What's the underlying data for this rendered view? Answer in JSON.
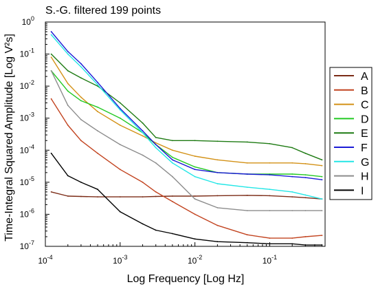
{
  "chart_data": {
    "type": "line",
    "title": "S.-G. filtered 199 points",
    "xlabel": "Log Frequency [Log Hz]",
    "ylabel": "Time-Integral Squared Amplitude [Log V²s]",
    "xscale": "log",
    "yscale": "log",
    "xlim": [
      0.0001,
      0.55
    ],
    "ylim": [
      1e-07,
      1
    ],
    "x_ticks": [
      {
        "value": 0.0001,
        "base": "10",
        "exp": "-4"
      },
      {
        "value": 0.001,
        "base": "10",
        "exp": "-3"
      },
      {
        "value": 0.01,
        "base": "10",
        "exp": "-2"
      },
      {
        "value": 0.1,
        "base": "10",
        "exp": "-1"
      }
    ],
    "y_ticks": [
      {
        "value": 1,
        "base": "10",
        "exp": "0"
      },
      {
        "value": 0.1,
        "base": "10",
        "exp": "-1"
      },
      {
        "value": 0.01,
        "base": "10",
        "exp": "-2"
      },
      {
        "value": 0.001,
        "base": "10",
        "exp": "-3"
      },
      {
        "value": 0.0001,
        "base": "10",
        "exp": "-4"
      },
      {
        "value": 1e-05,
        "base": "10",
        "exp": "-5"
      },
      {
        "value": 1e-06,
        "base": "10",
        "exp": "-6"
      },
      {
        "value": 1e-07,
        "base": "10",
        "exp": "-7"
      }
    ],
    "grid": false,
    "legend_position": "right",
    "x": [
      0.00012,
      0.0002,
      0.0003,
      0.0005,
      0.001,
      0.002,
      0.003,
      0.005,
      0.01,
      0.02,
      0.05,
      0.1,
      0.2,
      0.3,
      0.5
    ],
    "series": [
      {
        "name": "A",
        "color": "#7b2b16",
        "values": [
          5e-06,
          3.7e-06,
          3.6e-06,
          3.5e-06,
          3.5e-06,
          3.5e-06,
          3.6e-06,
          3.7e-06,
          3.7e-06,
          3.8e-06,
          3.9e-06,
          3.8e-06,
          3.5e-06,
          3.3e-06,
          3e-06
        ]
      },
      {
        "name": "B",
        "color": "#c2431f",
        "values": [
          0.004,
          0.0006,
          0.0002,
          8e-05,
          2.5e-05,
          1e-05,
          5e-06,
          2.5e-06,
          1e-06,
          4.5e-07,
          2.3e-07,
          1.8e-07,
          1.8e-07,
          2e-07,
          2.2e-07
        ]
      },
      {
        "name": "C",
        "color": "#d39116",
        "values": [
          0.08,
          0.012,
          0.0045,
          0.0016,
          0.0006,
          0.00028,
          0.00017,
          0.0001,
          6.5e-05,
          5e-05,
          4e-05,
          4e-05,
          4e-05,
          3.8e-05,
          3.3e-05
        ]
      },
      {
        "name": "D",
        "color": "#22c922",
        "values": [
          0.03,
          0.007,
          0.0035,
          0.0022,
          0.001,
          0.00035,
          0.00015,
          6e-05,
          3e-05,
          2e-05,
          1.8e-05,
          1.8e-05,
          1.8e-05,
          1.7e-05,
          1.5e-05
        ]
      },
      {
        "name": "E",
        "color": "#1d7a12",
        "values": [
          0.1,
          0.03,
          0.018,
          0.01,
          0.003,
          0.0007,
          0.00025,
          0.0002,
          0.0002,
          0.00019,
          0.00018,
          0.00016,
          0.00012,
          8e-05,
          5e-05
        ]
      },
      {
        "name": "F",
        "color": "#1a1ad6",
        "values": [
          0.5,
          0.12,
          0.05,
          0.013,
          0.002,
          0.0004,
          0.00015,
          5e-05,
          2.5e-05,
          2e-05,
          1.8e-05,
          1.7e-05,
          1.5e-05,
          1.4e-05,
          1.2e-05
        ]
      },
      {
        "name": "G",
        "color": "#22e6e6",
        "values": [
          0.4,
          0.1,
          0.04,
          0.011,
          0.0018,
          0.00035,
          0.00012,
          4e-05,
          1.5e-05,
          9e-06,
          7e-06,
          6e-06,
          5e-06,
          4e-06,
          3e-06
        ]
      },
      {
        "name": "H",
        "color": "#8c8c8c",
        "values": [
          0.03,
          0.0025,
          0.0009,
          0.0004,
          0.00015,
          7e-05,
          4e-05,
          1.5e-05,
          3e-06,
          1.6e-06,
          1.3e-06,
          1.3e-06,
          1.3e-06,
          1.3e-06,
          1.3e-06
        ]
      },
      {
        "name": "I",
        "color": "#000000",
        "values": [
          8e-05,
          1.6e-05,
          1e-05,
          6e-06,
          1.2e-06,
          5e-07,
          3.2e-07,
          2.5e-07,
          1.7e-07,
          1.4e-07,
          1.3e-07,
          1.2e-07,
          1.2e-07,
          1.1e-07,
          1.1e-07
        ]
      }
    ]
  }
}
